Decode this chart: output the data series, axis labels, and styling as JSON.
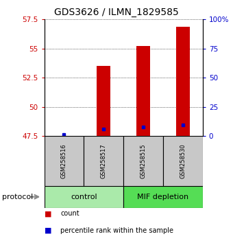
{
  "title": "GDS3626 / ILMN_1829585",
  "samples": [
    "GSM258516",
    "GSM258517",
    "GSM258515",
    "GSM258530"
  ],
  "groups": [
    {
      "label": "control",
      "indices": [
        0,
        1
      ]
    },
    {
      "label": "MIF depletion",
      "indices": [
        2,
        3
      ]
    }
  ],
  "red_values": [
    47.52,
    53.5,
    55.2,
    56.85
  ],
  "blue_values": [
    47.62,
    48.12,
    48.28,
    48.48
  ],
  "ymin": 47.5,
  "ymax": 57.5,
  "yticks_left": [
    47.5,
    50.0,
    52.5,
    55.0,
    57.5
  ],
  "yticks_right_vals": [
    0,
    25,
    50,
    75,
    100
  ],
  "yticks_right_labels": [
    "0",
    "25",
    "50",
    "75",
    "100%"
  ],
  "bar_color": "#CC0000",
  "dot_color": "#0000CC",
  "left_tick_color": "#CC0000",
  "right_tick_color": "#0000CC",
  "title_fontsize": 10,
  "axis_fontsize": 7.5,
  "legend_fontsize": 7,
  "group_label_fontsize": 8,
  "sample_label_fontsize": 6,
  "protocol_fontsize": 8,
  "bar_width": 0.35,
  "group_bg_color": "#C8C8C8",
  "control_color": "#AAEAAA",
  "mif_color": "#55DD55",
  "protocol_color": "#gray"
}
